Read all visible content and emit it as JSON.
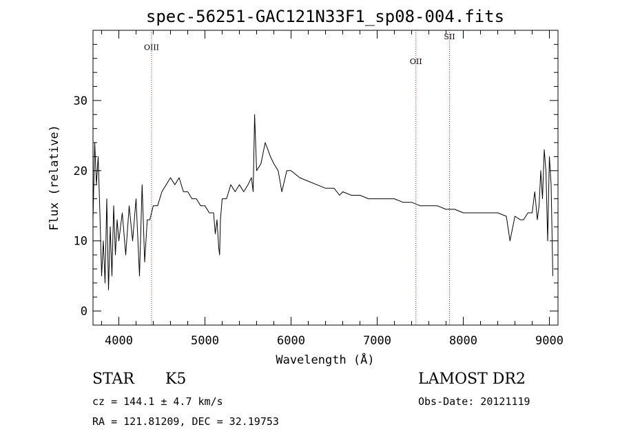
{
  "chart_data": {
    "type": "line",
    "title": "spec-56251-GAC121N33F1_sp08-004.fits",
    "xlabel": "Wavelength (Å)",
    "ylabel": "Flux (relative)",
    "xlim": [
      3700,
      9100
    ],
    "ylim": [
      -2,
      40
    ],
    "x_ticks": [
      4000,
      5000,
      6000,
      7000,
      8000,
      9000
    ],
    "y_ticks": [
      0,
      10,
      20,
      30
    ],
    "x_minor_step": 200,
    "y_minor_step": 2,
    "series": [
      {
        "color": "#000000",
        "x": [
          3700,
          3720,
          3740,
          3760,
          3780,
          3800,
          3820,
          3840,
          3860,
          3880,
          3900,
          3920,
          3940,
          3960,
          3980,
          4000,
          4040,
          4080,
          4120,
          4160,
          4200,
          4240,
          4270,
          4300,
          4330,
          4360,
          4400,
          4450,
          4500,
          4550,
          4600,
          4650,
          4700,
          4750,
          4800,
          4850,
          4900,
          4950,
          5000,
          5050,
          5100,
          5120,
          5140,
          5160,
          5170,
          5180,
          5200,
          5250,
          5300,
          5350,
          5400,
          5450,
          5500,
          5540,
          5560,
          5577,
          5600,
          5650,
          5700,
          5730,
          5760,
          5800,
          5850,
          5893,
          5950,
          6000,
          6100,
          6200,
          6300,
          6400,
          6500,
          6563,
          6600,
          6700,
          6800,
          6900,
          7000,
          7100,
          7200,
          7300,
          7400,
          7500,
          7600,
          7700,
          7800,
          7900,
          8000,
          8100,
          8200,
          8300,
          8400,
          8500,
          8542,
          8600,
          8662,
          8700,
          8750,
          8800,
          8830,
          8860,
          8880,
          8900,
          8920,
          8940,
          8960,
          8980,
          9000,
          9020,
          9040
        ],
        "y": [
          13,
          24,
          18,
          22,
          14,
          5,
          10,
          4,
          16,
          3,
          12,
          5,
          15,
          8,
          13,
          10,
          14,
          8,
          15,
          10,
          16,
          5,
          18,
          7,
          13,
          13,
          15,
          15,
          17,
          18,
          19,
          18,
          19,
          17,
          17,
          16,
          16,
          15,
          15,
          14,
          14,
          11,
          13,
          9,
          8,
          13,
          16,
          16,
          18,
          17,
          18,
          17,
          18,
          19,
          17,
          28,
          20,
          21,
          24,
          23,
          22,
          21,
          20,
          17,
          20,
          20,
          19,
          18.5,
          18,
          17.5,
          17.5,
          16.5,
          17,
          16.5,
          16.5,
          16,
          16,
          16,
          16,
          15.5,
          15.5,
          15,
          15,
          15,
          14.5,
          14.5,
          14,
          14,
          14,
          14,
          14,
          13.5,
          10,
          13.5,
          13,
          13,
          14,
          14,
          17,
          13,
          15,
          20,
          16,
          23,
          20,
          10,
          22,
          18,
          5
        ]
      }
    ],
    "annotations": [
      {
        "label": "OIII",
        "x": 4380,
        "label_y": 37.2
      },
      {
        "label": "OII",
        "x": 7450,
        "label_y": 35.2
      },
      {
        "label": "SII",
        "x": 7840,
        "label_y": 38.7
      }
    ],
    "annotation_color": "#a02020"
  },
  "info": {
    "object_class": "STAR",
    "subclass": "K5",
    "survey": "LAMOST DR2",
    "redshift": "cz = 144.1 ± 4.7 km/s",
    "obs_date": "Obs-Date: 20121119",
    "coords": "RA = 121.81209, DEC =  32.19753"
  }
}
